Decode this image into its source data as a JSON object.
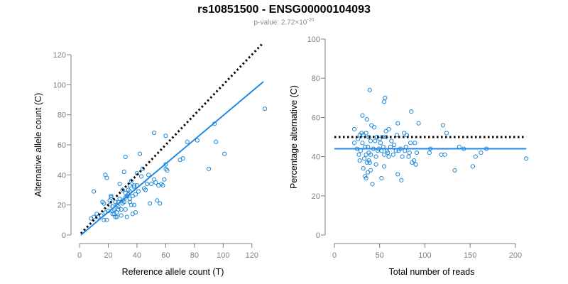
{
  "header": {
    "title": "rs10851500 - ENSG00000104093",
    "pvalue_label": "p-value: 2.72×10",
    "pvalue_exp": "-20"
  },
  "colors": {
    "points": "#1f88d8",
    "fit": "#2288e6",
    "reference": "#000000",
    "axis": "#7f7f7f"
  },
  "chart_data": [
    {
      "type": "scatter",
      "title": "",
      "xlabel": "Reference allele count (T)",
      "ylabel": "Alternative allele count (C)",
      "xlim": [
        0,
        130
      ],
      "ylim": [
        0,
        120
      ],
      "xticks": [
        0,
        20,
        40,
        60,
        80,
        100,
        120
      ],
      "yticks": [
        0,
        20,
        40,
        60,
        80,
        100,
        120
      ],
      "grid": false,
      "lines": [
        {
          "role": "reference",
          "style": "dotted",
          "color": "#000000",
          "from": [
            1,
            1
          ],
          "to": [
            128,
            128
          ]
        },
        {
          "role": "fit",
          "style": "solid",
          "color": "#2288e6",
          "from": [
            1,
            0
          ],
          "to": [
            128,
            102
          ]
        }
      ],
      "points": [
        [
          10,
          29
        ],
        [
          8,
          11
        ],
        [
          10,
          12
        ],
        [
          12,
          14
        ],
        [
          13,
          12
        ],
        [
          15,
          13
        ],
        [
          16,
          22
        ],
        [
          17,
          21
        ],
        [
          17,
          10
        ],
        [
          18,
          15
        ],
        [
          18,
          40
        ],
        [
          19,
          38
        ],
        [
          19,
          10
        ],
        [
          20,
          16
        ],
        [
          21,
          20
        ],
        [
          21,
          23
        ],
        [
          22,
          25
        ],
        [
          22,
          26
        ],
        [
          23,
          16
        ],
        [
          23,
          14
        ],
        [
          23,
          19
        ],
        [
          24,
          14
        ],
        [
          24,
          17
        ],
        [
          25,
          12
        ],
        [
          25,
          22
        ],
        [
          26,
          12
        ],
        [
          26,
          20
        ],
        [
          26,
          15
        ],
        [
          27,
          19
        ],
        [
          27,
          22
        ],
        [
          27,
          17
        ],
        [
          28,
          24
        ],
        [
          28,
          34
        ],
        [
          29,
          13
        ],
        [
          29,
          17
        ],
        [
          30,
          21
        ],
        [
          30,
          23
        ],
        [
          30,
          30
        ],
        [
          31,
          42
        ],
        [
          31,
          22
        ],
        [
          32,
          17
        ],
        [
          32,
          25
        ],
        [
          32,
          28
        ],
        [
          32,
          52
        ],
        [
          33,
          26
        ],
        [
          33,
          12
        ],
        [
          34,
          27
        ],
        [
          34,
          30
        ],
        [
          35,
          29
        ],
        [
          35,
          22
        ],
        [
          35,
          24
        ],
        [
          35,
          33
        ],
        [
          36,
          20
        ],
        [
          36,
          36
        ],
        [
          37,
          26
        ],
        [
          37,
          14
        ],
        [
          38,
          32
        ],
        [
          38,
          33
        ],
        [
          38,
          20
        ],
        [
          39,
          15
        ],
        [
          39,
          27
        ],
        [
          40,
          41
        ],
        [
          40,
          33
        ],
        [
          41,
          29
        ],
        [
          42,
          54
        ],
        [
          43,
          39
        ],
        [
          44,
          44
        ],
        [
          45,
          31
        ],
        [
          46,
          30
        ],
        [
          47,
          34
        ],
        [
          48,
          40
        ],
        [
          49,
          21
        ],
        [
          50,
          34
        ],
        [
          52,
          68
        ],
        [
          52,
          37
        ],
        [
          53,
          35
        ],
        [
          54,
          23
        ],
        [
          55,
          33
        ],
        [
          56,
          21
        ],
        [
          57,
          34
        ],
        [
          58,
          33
        ],
        [
          59,
          37
        ],
        [
          60,
          66
        ],
        [
          60,
          44
        ],
        [
          60,
          47
        ],
        [
          61,
          43
        ],
        [
          70,
          50
        ],
        [
          72,
          51
        ],
        [
          75,
          62
        ],
        [
          82,
          63
        ],
        [
          90,
          44
        ],
        [
          94,
          74
        ],
        [
          95,
          62
        ],
        [
          101,
          54
        ],
        [
          129,
          84
        ]
      ]
    },
    {
      "type": "scatter",
      "title": "",
      "xlabel": "Total number of reads",
      "ylabel": "Percentage alternative (C)",
      "xlim": [
        0,
        215
      ],
      "ylim": [
        0,
        100
      ],
      "xticks": [
        0,
        50,
        100,
        150,
        200
      ],
      "yticks": [
        0,
        20,
        40,
        60,
        80,
        100
      ],
      "grid": false,
      "lines": [
        {
          "role": "reference",
          "style": "dotted",
          "color": "#000000",
          "from": [
            0,
            50
          ],
          "to": [
            212,
            50
          ]
        },
        {
          "role": "fit",
          "style": "solid",
          "color": "#2288e6",
          "from": [
            0,
            44
          ],
          "to": [
            212,
            44
          ]
        }
      ],
      "points": [
        [
          22,
          54
        ],
        [
          22,
          47
        ],
        [
          25,
          44
        ],
        [
          26,
          49
        ],
        [
          27,
          41
        ],
        [
          28,
          51
        ],
        [
          28,
          38
        ],
        [
          29,
          43
        ],
        [
          30,
          52
        ],
        [
          31,
          61
        ],
        [
          31,
          47
        ],
        [
          32,
          34
        ],
        [
          32,
          51
        ],
        [
          33,
          39
        ],
        [
          34,
          30
        ],
        [
          34,
          45
        ],
        [
          35,
          52
        ],
        [
          35,
          41
        ],
        [
          35,
          29
        ],
        [
          36,
          37
        ],
        [
          36,
          59
        ],
        [
          37,
          32
        ],
        [
          37,
          45
        ],
        [
          38,
          42
        ],
        [
          38,
          50
        ],
        [
          38,
          38
        ],
        [
          39,
          74
        ],
        [
          39,
          37
        ],
        [
          40,
          48
        ],
        [
          40,
          41
        ],
        [
          40,
          33
        ],
        [
          41,
          56
        ],
        [
          42,
          26
        ],
        [
          43,
          44
        ],
        [
          44,
          55
        ],
        [
          45,
          48
        ],
        [
          46,
          40
        ],
        [
          46,
          36
        ],
        [
          47,
          50
        ],
        [
          48,
          43
        ],
        [
          49,
          44
        ],
        [
          50,
          49
        ],
        [
          51,
          47
        ],
        [
          52,
          29
        ],
        [
          52,
          43
        ],
        [
          53,
          50
        ],
        [
          54,
          45
        ],
        [
          55,
          41
        ],
        [
          55,
          35
        ],
        [
          55,
          68
        ],
        [
          56,
          70
        ],
        [
          57,
          50
        ],
        [
          57,
          53
        ],
        [
          58,
          43
        ],
        [
          59,
          42
        ],
        [
          60,
          40
        ],
        [
          60,
          54
        ],
        [
          62,
          45
        ],
        [
          63,
          48
        ],
        [
          65,
          41
        ],
        [
          66,
          46
        ],
        [
          68,
          43
        ],
        [
          69,
          51
        ],
        [
          70,
          31
        ],
        [
          70,
          57
        ],
        [
          71,
          43
        ],
        [
          73,
          44
        ],
        [
          74,
          28
        ],
        [
          75,
          40
        ],
        [
          77,
          52
        ],
        [
          78,
          43
        ],
        [
          79,
          45
        ],
        [
          80,
          51
        ],
        [
          82,
          40
        ],
        [
          83,
          42
        ],
        [
          84,
          47
        ],
        [
          85,
          63
        ],
        [
          86,
          37
        ],
        [
          88,
          38
        ],
        [
          89,
          47
        ],
        [
          90,
          36
        ],
        [
          91,
          42
        ],
        [
          93,
          57
        ],
        [
          105,
          42
        ],
        [
          106,
          44
        ],
        [
          118,
          41
        ],
        [
          120,
          56
        ],
        [
          122,
          41
        ],
        [
          124,
          52
        ],
        [
          133,
          33
        ],
        [
          138,
          45
        ],
        [
          143,
          44
        ],
        [
          153,
          35
        ],
        [
          156,
          40
        ],
        [
          162,
          42
        ],
        [
          168,
          44
        ],
        [
          212,
          39
        ]
      ]
    }
  ]
}
